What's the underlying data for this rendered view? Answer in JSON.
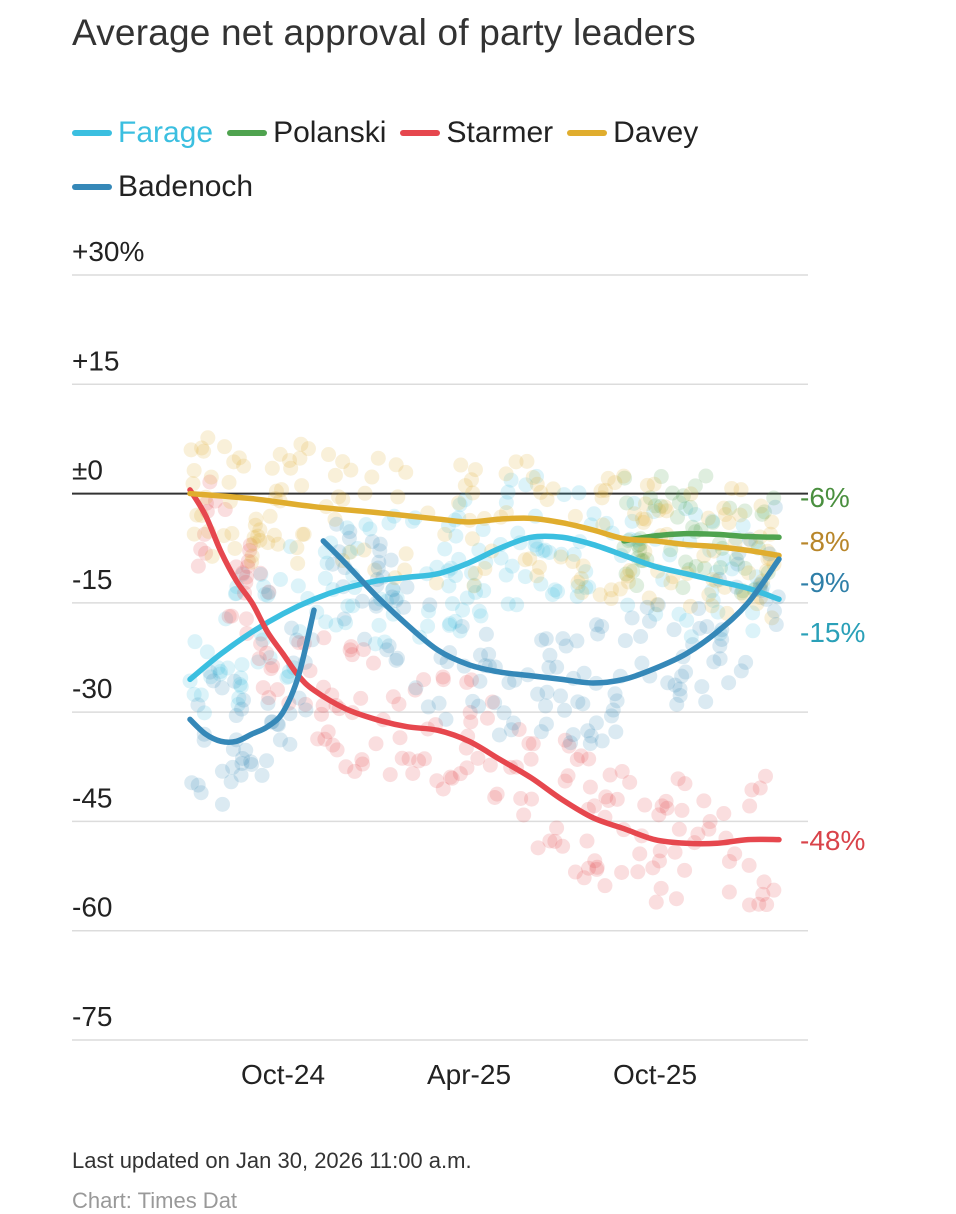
{
  "title": "Average net approval of party leaders",
  "footer": {
    "updated": "Last updated on Jan 30, 2026 11:00 a.m.",
    "source_partial": "Chart: Times Dat"
  },
  "colors": {
    "farage": "#3bbfe0",
    "polanski": "#4fa34f",
    "starmer": "#e6474e",
    "davey": "#e0ad2e",
    "badenoch": "#3588b8"
  },
  "chart_data": {
    "type": "line",
    "title": "Average net approval of party leaders",
    "xlabel": "",
    "ylabel": "",
    "ylim": [
      -75,
      30
    ],
    "xlim": [
      0,
      19.5
    ],
    "yticks": [
      {
        "value": 30,
        "label": "+30%"
      },
      {
        "value": 15,
        "label": "+15"
      },
      {
        "value": 0,
        "label": "±0"
      },
      {
        "value": -15,
        "label": "-15"
      },
      {
        "value": -30,
        "label": "-30"
      },
      {
        "value": -45,
        "label": "-45"
      },
      {
        "value": -60,
        "label": "-60"
      },
      {
        "value": -75,
        "label": "-75"
      }
    ],
    "xticks": [
      {
        "value": 3,
        "label": "Oct-24"
      },
      {
        "value": 9,
        "label": "Apr-25"
      },
      {
        "value": 15,
        "label": "Oct-25"
      }
    ],
    "x_unit": "months since Jul-24",
    "series": [
      {
        "name": "Farage",
        "key": "farage",
        "points": [
          [
            0,
            -25.5
          ],
          [
            1,
            -22
          ],
          [
            2,
            -19
          ],
          [
            3,
            -16.5
          ],
          [
            4,
            -14.5
          ],
          [
            5,
            -13
          ],
          [
            6,
            -12
          ],
          [
            7,
            -11.5
          ],
          [
            8,
            -11
          ],
          [
            9,
            -9.5
          ],
          [
            10,
            -7.5
          ],
          [
            11,
            -6
          ],
          [
            12,
            -6
          ],
          [
            13,
            -7
          ],
          [
            14,
            -8.5
          ],
          [
            15,
            -10
          ],
          [
            16,
            -11
          ],
          [
            17,
            -12
          ],
          [
            18,
            -13
          ],
          [
            19,
            -14.5
          ]
        ],
        "end_label": "-15%"
      },
      {
        "name": "Polanski",
        "key": "polanski",
        "points": [
          [
            14,
            -6.5
          ],
          [
            15,
            -5.8
          ],
          [
            16,
            -5.5
          ],
          [
            17,
            -5.6
          ],
          [
            18,
            -5.9
          ],
          [
            19,
            -6
          ]
        ],
        "end_label": "-6%"
      },
      {
        "name": "Starmer",
        "key": "starmer",
        "points": [
          [
            0,
            0.5
          ],
          [
            0.5,
            -3
          ],
          [
            1,
            -8
          ],
          [
            1.5,
            -12
          ],
          [
            2,
            -15
          ],
          [
            2.5,
            -19
          ],
          [
            3,
            -22
          ],
          [
            3.5,
            -25
          ],
          [
            4,
            -27
          ],
          [
            5,
            -29.5
          ],
          [
            6,
            -31
          ],
          [
            7,
            -32
          ],
          [
            8,
            -32.5
          ],
          [
            9,
            -34
          ],
          [
            10,
            -36.5
          ],
          [
            11,
            -39
          ],
          [
            12,
            -42
          ],
          [
            13,
            -44.5
          ],
          [
            14,
            -46
          ],
          [
            15,
            -47.5
          ],
          [
            16,
            -48
          ],
          [
            17,
            -48
          ],
          [
            18,
            -47.5
          ],
          [
            19,
            -47.5
          ]
        ],
        "end_label": "-48%"
      },
      {
        "name": "Davey",
        "key": "davey",
        "points": [
          [
            0,
            0
          ],
          [
            2,
            -0.7
          ],
          [
            4,
            -1.8
          ],
          [
            6,
            -2.6
          ],
          [
            8,
            -3.5
          ],
          [
            9,
            -3.9
          ],
          [
            10,
            -3.5
          ],
          [
            11,
            -3.4
          ],
          [
            12,
            -4
          ],
          [
            13,
            -5
          ],
          [
            14,
            -6.2
          ],
          [
            15,
            -6.5
          ],
          [
            16,
            -7
          ],
          [
            17,
            -7.3
          ],
          [
            18,
            -7.8
          ],
          [
            19,
            -8.5
          ]
        ],
        "end_label": "-8%"
      },
      {
        "name": "Badenoch",
        "key": "badenoch",
        "segments": [
          [
            [
              0,
              -31
            ],
            [
              0.5,
              -33
            ],
            [
              1,
              -34
            ],
            [
              1.5,
              -34
            ],
            [
              2,
              -33
            ],
            [
              2.5,
              -32
            ],
            [
              3,
              -30
            ],
            [
              3.5,
              -25
            ],
            [
              4,
              -16
            ]
          ],
          [
            [
              4.3,
              -6.5
            ],
            [
              5,
              -9.5
            ],
            [
              6,
              -14
            ],
            [
              7,
              -18
            ],
            [
              8,
              -21.5
            ],
            [
              9,
              -23.5
            ],
            [
              10,
              -24.5
            ],
            [
              11,
              -25
            ],
            [
              12,
              -25.5
            ],
            [
              13,
              -26
            ],
            [
              14,
              -25.5
            ],
            [
              15,
              -24
            ],
            [
              16,
              -22
            ],
            [
              17,
              -19
            ],
            [
              18,
              -15
            ],
            [
              19,
              -9
            ]
          ]
        ],
        "end_label": "-9%"
      }
    ]
  }
}
